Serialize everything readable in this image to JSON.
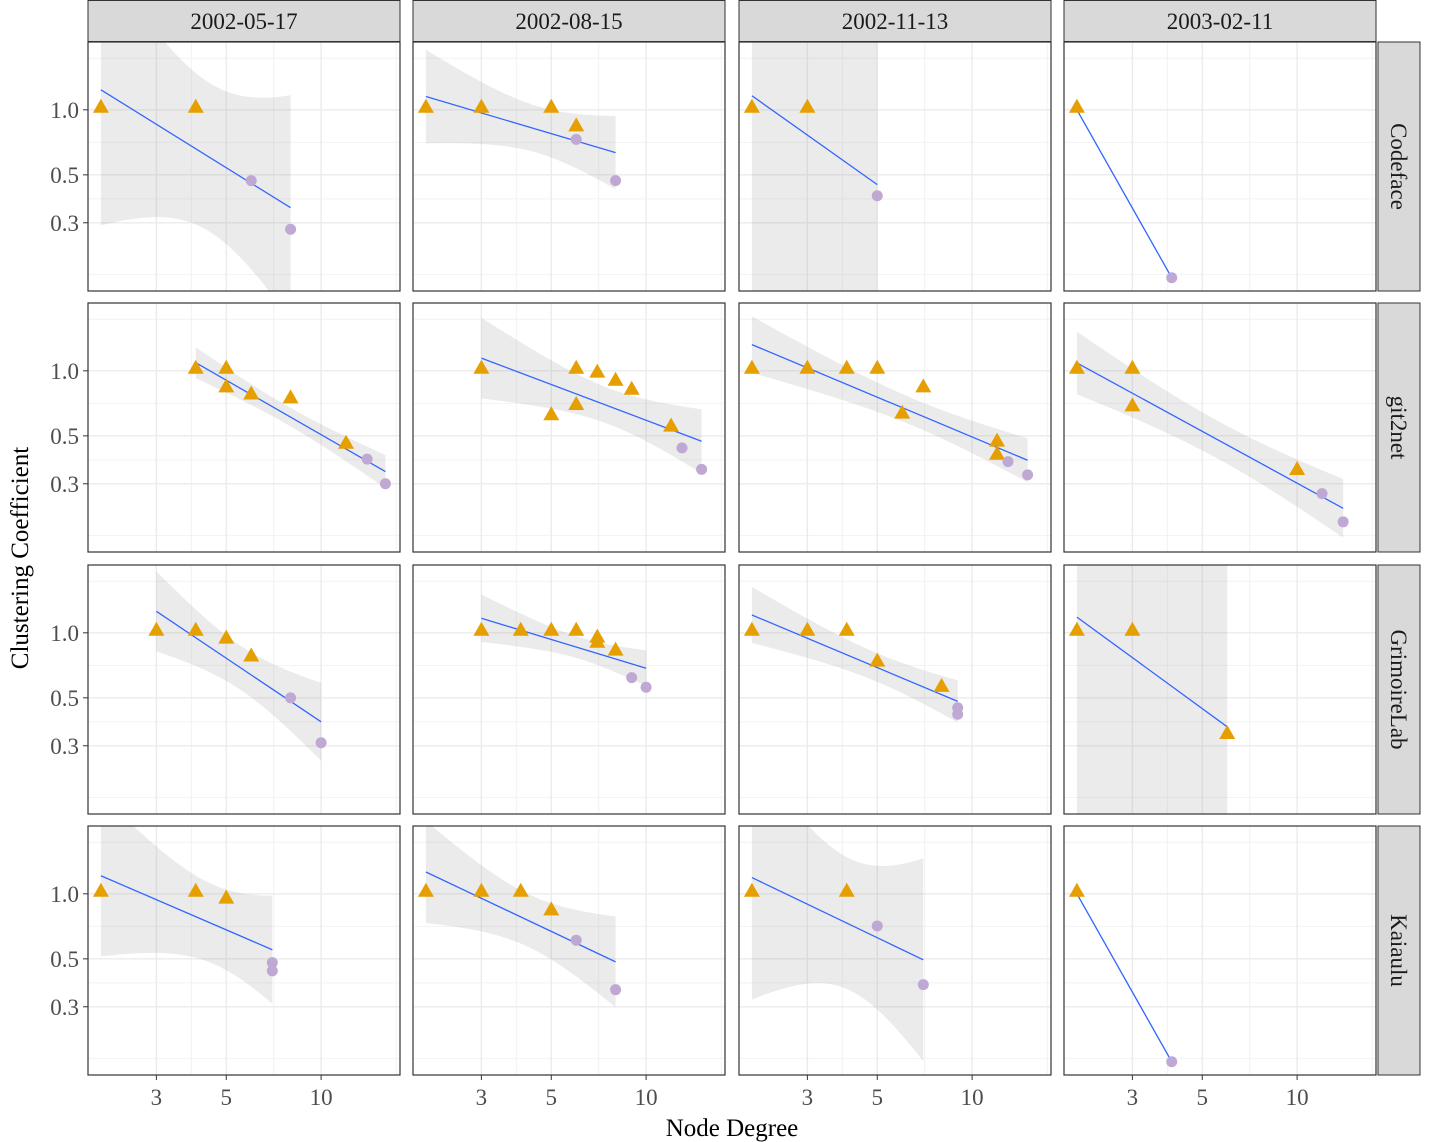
{
  "chart_data": {
    "type": "scatter",
    "title": "",
    "xlabel": "Node Degree",
    "ylabel": "Clustering Coefficient",
    "x_scale": "log10",
    "y_scale": "log10",
    "xlim": [
      1.82,
      17.8
    ],
    "ylim": [
      0.145,
      2.06
    ],
    "x_ticks": [
      3,
      5,
      10
    ],
    "x_tick_labels": [
      "3",
      "5",
      "10"
    ],
    "y_ticks": [
      0.3,
      0.5,
      1.0
    ],
    "y_tick_labels": [
      "0.3",
      "0.5",
      "1.0"
    ],
    "grid": true,
    "legend": "none",
    "smooth": "linear fit with 95% confidence band",
    "colors": {
      "triangle": "#E69F00",
      "circle": "#BFA8D4",
      "fit": "#3366FF",
      "band": "#EBEBEB",
      "strip": "#D9D9D9"
    },
    "facet_columns": [
      "2002-05-17",
      "2002-08-15",
      "2002-11-13",
      "2003-02-11"
    ],
    "facet_rows": [
      "Codeface",
      "git2net",
      "GrimoireLab",
      "Kaiaulu"
    ],
    "panels": [
      {
        "row": 0,
        "col": 0,
        "points": [
          [
            2,
            1,
            "t"
          ],
          [
            4,
            1,
            "t"
          ],
          [
            6,
            0.47,
            "c"
          ],
          [
            8,
            0.28,
            "c"
          ]
        ]
      },
      {
        "row": 0,
        "col": 1,
        "points": [
          [
            2,
            1,
            "t"
          ],
          [
            3,
            1,
            "t"
          ],
          [
            5,
            1,
            "t"
          ],
          [
            6,
            0.82,
            "t"
          ],
          [
            6,
            0.73,
            "c"
          ],
          [
            8,
            0.47,
            "c"
          ]
        ]
      },
      {
        "row": 0,
        "col": 2,
        "points": [
          [
            2,
            1,
            "t"
          ],
          [
            3,
            1,
            "t"
          ],
          [
            5,
            0.4,
            "c"
          ]
        ]
      },
      {
        "row": 0,
        "col": 3,
        "points": [
          [
            2,
            1,
            "t"
          ],
          [
            4,
            0.167,
            "c"
          ]
        ]
      },
      {
        "row": 1,
        "col": 0,
        "points": [
          [
            4,
            1,
            "t"
          ],
          [
            5,
            1,
            "t"
          ],
          [
            5,
            0.82,
            "t"
          ],
          [
            6,
            0.76,
            "t"
          ],
          [
            8,
            0.73,
            "t"
          ],
          [
            12,
            0.45,
            "t"
          ],
          [
            14,
            0.39,
            "c"
          ],
          [
            16,
            0.3,
            "c"
          ]
        ]
      },
      {
        "row": 1,
        "col": 1,
        "points": [
          [
            3,
            1,
            "t"
          ],
          [
            6,
            1,
            "t"
          ],
          [
            7,
            0.96,
            "t"
          ],
          [
            8,
            0.88,
            "t"
          ],
          [
            9,
            0.8,
            "t"
          ],
          [
            5,
            0.61,
            "t"
          ],
          [
            6,
            0.68,
            "t"
          ],
          [
            12,
            0.54,
            "t"
          ],
          [
            13,
            0.44,
            "c"
          ],
          [
            15,
            0.35,
            "c"
          ]
        ]
      },
      {
        "row": 1,
        "col": 2,
        "points": [
          [
            2,
            1,
            "t"
          ],
          [
            3,
            1,
            "t"
          ],
          [
            4,
            1,
            "t"
          ],
          [
            5,
            1,
            "t"
          ],
          [
            7,
            0.82,
            "t"
          ],
          [
            6,
            0.62,
            "t"
          ],
          [
            12,
            0.46,
            "t"
          ],
          [
            12,
            0.4,
            "t"
          ],
          [
            13,
            0.38,
            "c"
          ],
          [
            15,
            0.33,
            "c"
          ]
        ]
      },
      {
        "row": 1,
        "col": 3,
        "points": [
          [
            2,
            1,
            "t"
          ],
          [
            3,
            1,
            "t"
          ],
          [
            3,
            0.67,
            "t"
          ],
          [
            10,
            0.34,
            "t"
          ],
          [
            12,
            0.27,
            "c"
          ],
          [
            14,
            0.2,
            "c"
          ]
        ]
      },
      {
        "row": 2,
        "col": 0,
        "points": [
          [
            3,
            1,
            "t"
          ],
          [
            4,
            1,
            "t"
          ],
          [
            5,
            0.92,
            "t"
          ],
          [
            6,
            0.76,
            "t"
          ],
          [
            8,
            0.5,
            "c"
          ],
          [
            10,
            0.31,
            "c"
          ]
        ]
      },
      {
        "row": 2,
        "col": 1,
        "points": [
          [
            3,
            1,
            "t"
          ],
          [
            4,
            1,
            "t"
          ],
          [
            5,
            1,
            "t"
          ],
          [
            6,
            1,
            "t"
          ],
          [
            7,
            0.93,
            "t"
          ],
          [
            7,
            0.88,
            "t"
          ],
          [
            8,
            0.81,
            "t"
          ],
          [
            9,
            0.62,
            "c"
          ],
          [
            10,
            0.56,
            "c"
          ]
        ]
      },
      {
        "row": 2,
        "col": 2,
        "points": [
          [
            2,
            1,
            "t"
          ],
          [
            3,
            1,
            "t"
          ],
          [
            4,
            1,
            "t"
          ],
          [
            5,
            0.72,
            "t"
          ],
          [
            8,
            0.55,
            "t"
          ],
          [
            9,
            0.45,
            "c"
          ],
          [
            9,
            0.42,
            "c"
          ]
        ]
      },
      {
        "row": 2,
        "col": 3,
        "points": [
          [
            2,
            1,
            "t"
          ],
          [
            3,
            1,
            "t"
          ],
          [
            6,
            0.333,
            "t"
          ]
        ]
      },
      {
        "row": 3,
        "col": 0,
        "points": [
          [
            2,
            1,
            "t"
          ],
          [
            4,
            1,
            "t"
          ],
          [
            5,
            0.93,
            "t"
          ],
          [
            7,
            0.48,
            "c"
          ],
          [
            7,
            0.44,
            "c"
          ]
        ]
      },
      {
        "row": 3,
        "col": 1,
        "points": [
          [
            2,
            1,
            "t"
          ],
          [
            3,
            1,
            "t"
          ],
          [
            4,
            1,
            "t"
          ],
          [
            5,
            0.82,
            "t"
          ],
          [
            6,
            0.61,
            "c"
          ],
          [
            8,
            0.36,
            "c"
          ]
        ]
      },
      {
        "row": 3,
        "col": 2,
        "points": [
          [
            2,
            1,
            "t"
          ],
          [
            4,
            1,
            "t"
          ],
          [
            5,
            0.71,
            "c"
          ],
          [
            7,
            0.38,
            "c"
          ]
        ]
      },
      {
        "row": 3,
        "col": 3,
        "points": [
          [
            2,
            1,
            "t"
          ],
          [
            4,
            0.167,
            "c"
          ]
        ]
      }
    ]
  }
}
